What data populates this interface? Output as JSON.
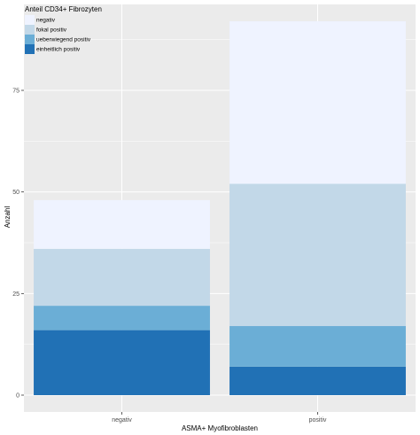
{
  "chart_data": {
    "type": "bar",
    "stacked": true,
    "categories": [
      "negativ",
      "positiv"
    ],
    "series": [
      {
        "name": "einheitlich positiv",
        "color": "#2171b5",
        "values": [
          16,
          7
        ]
      },
      {
        "name": "ueberwiegend positiv",
        "color": "#6baed6",
        "values": [
          6,
          10
        ]
      },
      {
        "name": "fokal positiv",
        "color": "#c2d8e8",
        "values": [
          14,
          35
        ]
      },
      {
        "name": "negativ",
        "color": "#eff3ff",
        "values": [
          12,
          40
        ]
      }
    ],
    "legend_order": [
      "negativ",
      "fokal positiv",
      "ueberwiegend positiv",
      "einheitlich positiv"
    ],
    "title": "",
    "legend_title": "Anteil CD34+ Fibrozyten",
    "legend_position": "top-left",
    "xlabel": "ASMA+ Myofibroblasten",
    "ylabel": "Anzahl",
    "yticks": [
      0,
      25,
      50,
      75
    ],
    "ylim": [
      0,
      92
    ],
    "grid": true,
    "panel_background": "#ebebeb",
    "grid_color": "#ffffff"
  }
}
